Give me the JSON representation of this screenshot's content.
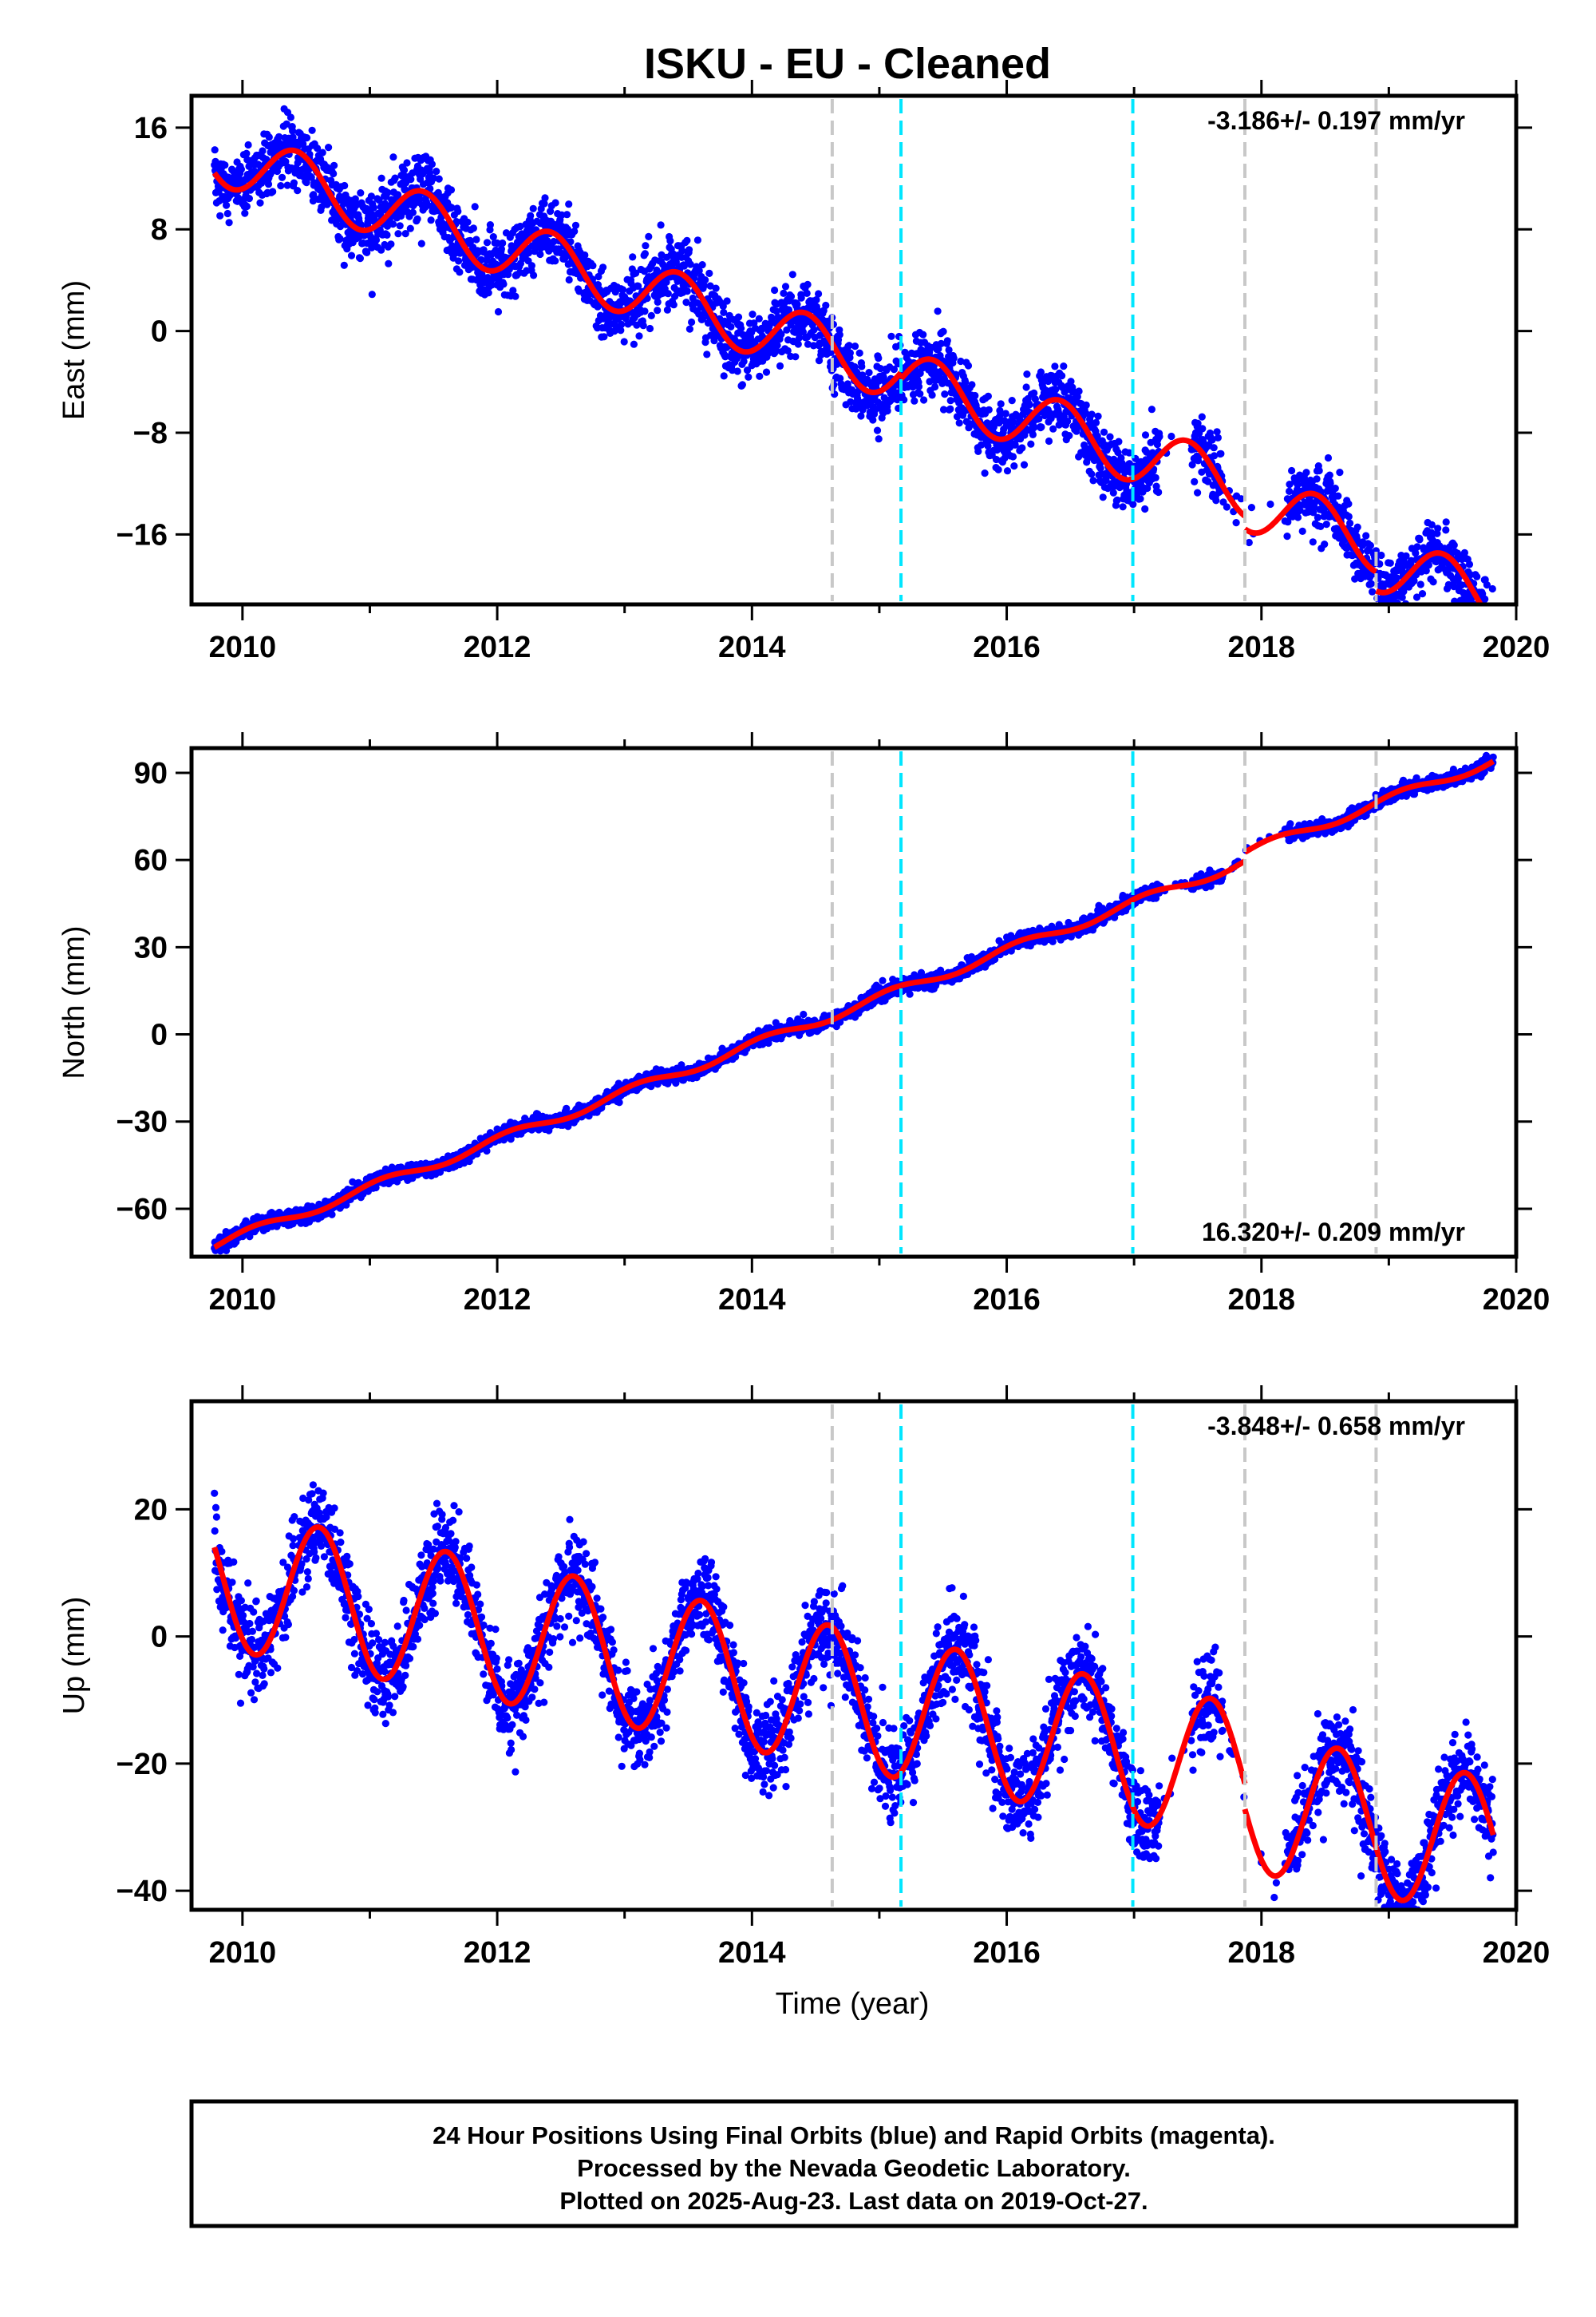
{
  "title": "ISKU  - EU - Cleaned",
  "colors": {
    "final_orbits": "#0000ff",
    "model": "#ff0000",
    "event_gray": "#c8c8c8",
    "event_cyan": "#00e6ff"
  },
  "chart_data": [
    {
      "type": "scatter",
      "component": "east",
      "ylabel": "East (mm)",
      "xlim": [
        2009.6,
        2020.0
      ],
      "ylim": [
        -21.5,
        18.5
      ],
      "xticks": [
        2010,
        2012,
        2014,
        2016,
        2018,
        2020
      ],
      "yticks": [
        16,
        8,
        0,
        -8,
        -16
      ],
      "ytick_labels": [
        "16",
        "8",
        "0",
        "−8",
        "−16"
      ],
      "rate_label": "-3.186+/- 0.197 mm/yr",
      "rate_position": "top-right",
      "event_lines": [
        {
          "x": 2014.63,
          "style": "gray"
        },
        {
          "x": 2015.17,
          "style": "cyan"
        },
        {
          "x": 2016.99,
          "style": "cyan"
        },
        {
          "x": 2017.87,
          "style": "gray"
        },
        {
          "x": 2018.9,
          "style": "gray"
        }
      ],
      "model": {
        "rate": -3.186,
        "y2010": 13.2,
        "amp": 2.3,
        "phase_peak": 0.42,
        "steps": [
          {
            "x": 2015.17,
            "dy": -0.5
          },
          {
            "x": 2017.87,
            "dy": -1.0
          },
          {
            "x": 2018.9,
            "dy": -1.5
          }
        ]
      },
      "noise": 1.3,
      "data_start": 2009.78,
      "data_end": 2019.82,
      "gaps": [
        [
          2017.2,
          2017.45
        ],
        [
          2017.7,
          2018.2
        ]
      ]
    },
    {
      "type": "scatter",
      "component": "north",
      "ylabel": "North (mm)",
      "xlim": [
        2009.6,
        2020.0
      ],
      "ylim": [
        -76.5,
        98.5
      ],
      "xticks": [
        2010,
        2012,
        2014,
        2016,
        2018,
        2020
      ],
      "yticks": [
        90,
        60,
        30,
        0,
        -30,
        -60
      ],
      "ytick_labels": [
        "90",
        "60",
        "30",
        "0",
        "−30",
        "−60"
      ],
      "rate_label": "16.320+/- 0.209 mm/yr",
      "rate_position": "bottom-right",
      "event_lines": [
        {
          "x": 2014.63,
          "style": "gray"
        },
        {
          "x": 2015.17,
          "style": "cyan"
        },
        {
          "x": 2016.99,
          "style": "cyan"
        },
        {
          "x": 2017.87,
          "style": "gray"
        },
        {
          "x": 2018.9,
          "style": "gray"
        }
      ],
      "model": {
        "rate": 16.32,
        "y2010": -69.0,
        "amp": 1.6,
        "phase_peak": 0.1,
        "steps": [
          {
            "x": 2015.17,
            "dy": 0.0
          },
          {
            "x": 2017.87,
            "dy": 3.0
          },
          {
            "x": 2018.9,
            "dy": 0.0
          }
        ]
      },
      "noise": 1.2,
      "data_start": 2009.78,
      "data_end": 2019.82,
      "gaps": [
        [
          2017.2,
          2017.45
        ],
        [
          2017.7,
          2018.2
        ]
      ]
    },
    {
      "type": "scatter",
      "component": "up",
      "ylabel": "Up (mm)",
      "xlabel": "Time (year)",
      "xlim": [
        2009.6,
        2020.0
      ],
      "ylim": [
        -43.0,
        37.0
      ],
      "xticks": [
        2010,
        2012,
        2014,
        2016,
        2018,
        2020
      ],
      "yticks": [
        20,
        0,
        -20,
        -40
      ],
      "ytick_labels": [
        "20",
        "0",
        "−20",
        "−40"
      ],
      "rate_label": "-3.848+/- 0.658 mm/yr",
      "rate_position": "top-right",
      "event_lines": [
        {
          "x": 2014.63,
          "style": "gray"
        },
        {
          "x": 2015.17,
          "style": "cyan"
        },
        {
          "x": 2016.99,
          "style": "cyan"
        },
        {
          "x": 2017.87,
          "style": "gray"
        },
        {
          "x": 2018.9,
          "style": "gray"
        }
      ],
      "model": {
        "rate": -3.848,
        "y2010": 8.5,
        "amp": 11.0,
        "phase_peak": 0.6,
        "steps": [
          {
            "x": 2015.17,
            "dy": 0.0
          },
          {
            "x": 2017.87,
            "dy": -4.0
          },
          {
            "x": 2018.9,
            "dy": 0.0
          }
        ]
      },
      "noise": 3.5,
      "data_start": 2009.78,
      "data_end": 2019.82,
      "gaps": [
        [
          2017.2,
          2017.45
        ],
        [
          2017.7,
          2018.2
        ]
      ]
    }
  ],
  "footer": {
    "line1": "24 Hour Positions Using Final Orbits (blue) and Rapid Orbits (magenta).",
    "line2": "Processed by the Nevada Geodetic Laboratory.",
    "line3": "Plotted on 2025-Aug-23. Last data on 2019-Oct-27."
  }
}
